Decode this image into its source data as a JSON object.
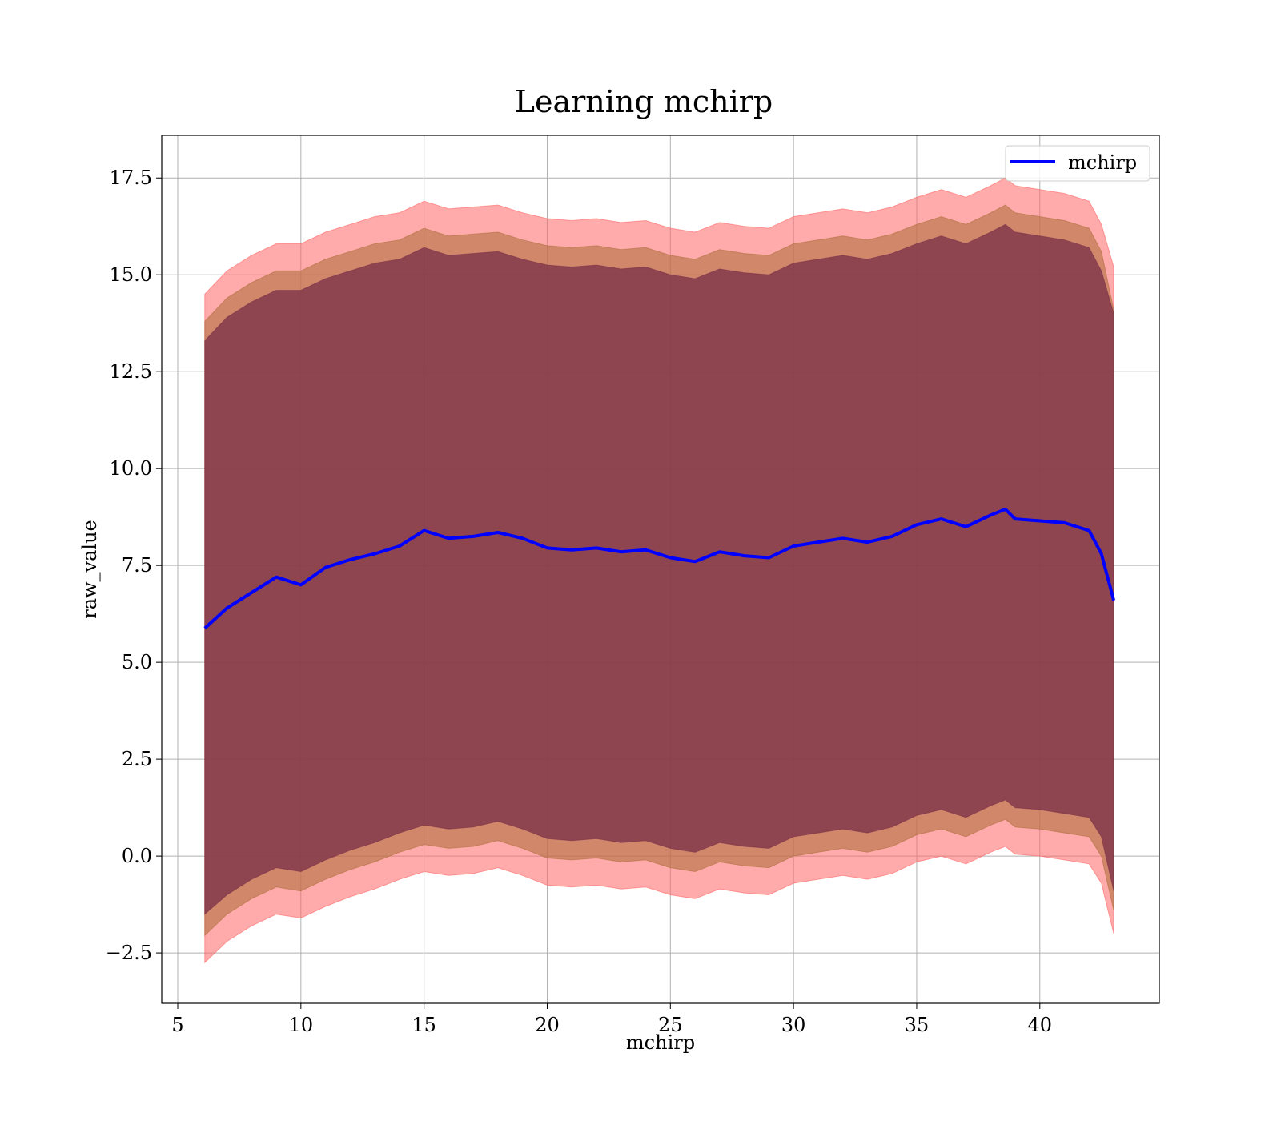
{
  "chart_data": {
    "type": "line",
    "title": "Learning mchirp",
    "xlabel": "mchirp",
    "ylabel": "raw_value",
    "xlim": [
      4.35,
      44.85
    ],
    "ylim": [
      -3.8,
      18.6
    ],
    "xticks": [
      5,
      10,
      15,
      20,
      25,
      30,
      35,
      40
    ],
    "xtick_labels": [
      "5",
      "10",
      "15",
      "20",
      "25",
      "30",
      "35",
      "40"
    ],
    "yticks": [
      -2.5,
      0.0,
      2.5,
      5.0,
      7.5,
      10.0,
      12.5,
      15.0,
      17.5
    ],
    "ytick_labels": [
      "−2.5",
      "0.0",
      "2.5",
      "5.0",
      "7.5",
      "10.0",
      "12.5",
      "15.0",
      "17.5"
    ],
    "grid": true,
    "legend": {
      "position": "upper right",
      "entries": [
        "mchirp"
      ]
    },
    "colors": {
      "line": "#0000ff",
      "band_outer": "#ff6666",
      "band_middle": "#b07040",
      "band_inner": "#7a2f48",
      "grid": "#b0b0b0"
    },
    "x": [
      6.1,
      7,
      8,
      9,
      10,
      11,
      12,
      13,
      14,
      15,
      16,
      17,
      18,
      19,
      20,
      21,
      22,
      23,
      24,
      25,
      26,
      27,
      28,
      29,
      30,
      31,
      32,
      33,
      34,
      35,
      36,
      37,
      38,
      38.6,
      39,
      40,
      41,
      42,
      42.5,
      43
    ],
    "series": [
      {
        "name": "mchirp",
        "values": [
          5.88,
          6.4,
          6.8,
          7.2,
          7.0,
          7.45,
          7.65,
          7.8,
          8.0,
          8.4,
          8.2,
          8.25,
          8.35,
          8.2,
          7.95,
          7.9,
          7.95,
          7.85,
          7.9,
          7.7,
          7.6,
          7.85,
          7.75,
          7.7,
          8.0,
          8.1,
          8.2,
          8.1,
          8.25,
          8.55,
          8.7,
          8.5,
          8.8,
          8.95,
          8.7,
          8.65,
          8.6,
          8.4,
          7.8,
          6.6
        ]
      }
    ],
    "bands": [
      {
        "upper": [
          14.5,
          15.1,
          15.5,
          15.8,
          15.8,
          16.1,
          16.3,
          16.5,
          16.6,
          16.9,
          16.7,
          16.75,
          16.8,
          16.6,
          16.45,
          16.4,
          16.45,
          16.35,
          16.4,
          16.2,
          16.1,
          16.35,
          16.25,
          16.2,
          16.5,
          16.6,
          16.7,
          16.6,
          16.75,
          17.0,
          17.2,
          17.0,
          17.3,
          17.5,
          17.3,
          17.2,
          17.1,
          16.9,
          16.3,
          15.2
        ],
        "lower": [
          -2.75,
          -2.2,
          -1.8,
          -1.5,
          -1.6,
          -1.3,
          -1.05,
          -0.85,
          -0.6,
          -0.4,
          -0.5,
          -0.45,
          -0.3,
          -0.5,
          -0.75,
          -0.8,
          -0.75,
          -0.85,
          -0.8,
          -1.0,
          -1.1,
          -0.85,
          -0.95,
          -1.0,
          -0.7,
          -0.6,
          -0.5,
          -0.6,
          -0.45,
          -0.15,
          0.0,
          -0.2,
          0.1,
          0.25,
          0.05,
          0.0,
          -0.1,
          -0.2,
          -0.7,
          -2.0
        ]
      },
      {
        "upper": [
          13.8,
          14.4,
          14.8,
          15.1,
          15.1,
          15.4,
          15.6,
          15.8,
          15.9,
          16.2,
          16.0,
          16.05,
          16.1,
          15.9,
          15.75,
          15.7,
          15.75,
          15.65,
          15.7,
          15.5,
          15.4,
          15.65,
          15.55,
          15.5,
          15.8,
          15.9,
          16.0,
          15.9,
          16.05,
          16.3,
          16.5,
          16.3,
          16.6,
          16.8,
          16.6,
          16.5,
          16.4,
          16.2,
          15.6,
          14.1
        ],
        "lower": [
          -2.05,
          -1.5,
          -1.1,
          -0.8,
          -0.9,
          -0.6,
          -0.35,
          -0.15,
          0.1,
          0.3,
          0.2,
          0.25,
          0.4,
          0.2,
          -0.05,
          -0.1,
          -0.05,
          -0.15,
          -0.1,
          -0.3,
          -0.4,
          -0.15,
          -0.25,
          -0.3,
          0.0,
          0.1,
          0.2,
          0.1,
          0.25,
          0.55,
          0.7,
          0.5,
          0.8,
          0.95,
          0.75,
          0.7,
          0.6,
          0.5,
          0.0,
          -1.4
        ]
      },
      {
        "upper": [
          13.3,
          13.9,
          14.3,
          14.6,
          14.6,
          14.9,
          15.1,
          15.3,
          15.4,
          15.7,
          15.5,
          15.55,
          15.6,
          15.4,
          15.25,
          15.2,
          15.25,
          15.15,
          15.2,
          15.0,
          14.9,
          15.15,
          15.05,
          15.0,
          15.3,
          15.4,
          15.5,
          15.4,
          15.55,
          15.8,
          16.0,
          15.8,
          16.1,
          16.3,
          16.1,
          16.0,
          15.9,
          15.7,
          15.1,
          14.0
        ],
        "lower": [
          -1.5,
          -1.0,
          -0.6,
          -0.3,
          -0.4,
          -0.1,
          0.15,
          0.35,
          0.6,
          0.8,
          0.7,
          0.75,
          0.9,
          0.7,
          0.45,
          0.4,
          0.45,
          0.35,
          0.4,
          0.2,
          0.1,
          0.35,
          0.25,
          0.2,
          0.5,
          0.6,
          0.7,
          0.6,
          0.75,
          1.05,
          1.2,
          1.0,
          1.3,
          1.45,
          1.25,
          1.2,
          1.1,
          1.0,
          0.5,
          -0.9
        ]
      }
    ]
  }
}
